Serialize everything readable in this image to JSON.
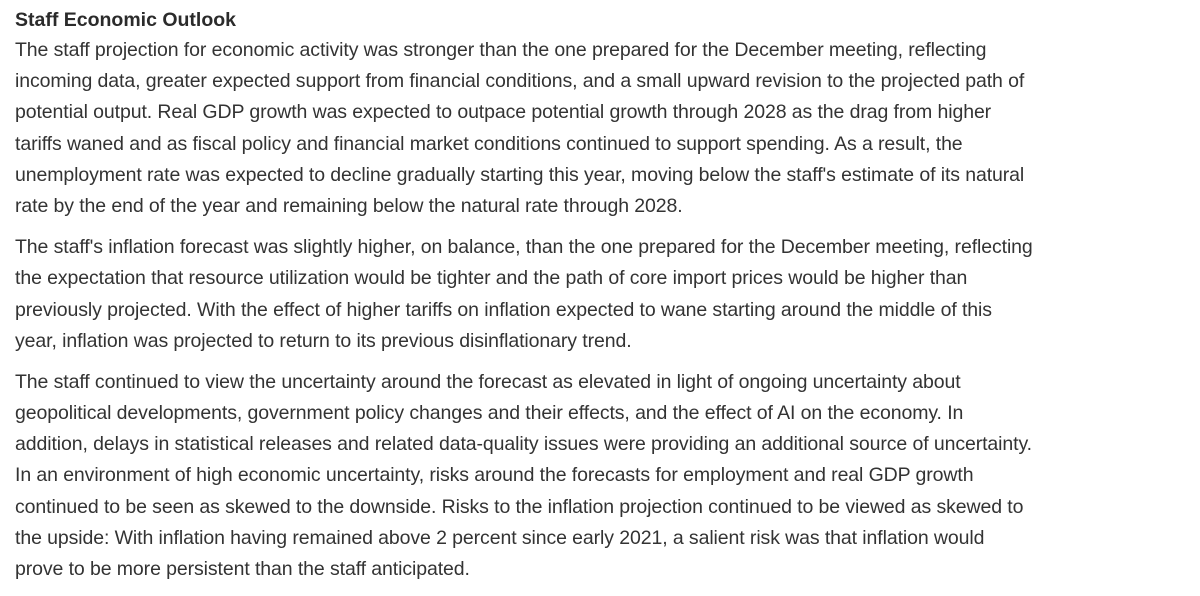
{
  "document": {
    "heading": "Staff Economic Outlook",
    "paragraphs": [
      {
        "lines": [
          "The staff projection for economic activity was stronger than the one prepared for the December meeting, reflecting",
          "incoming data, greater expected support from financial conditions, and a small upward revision to the projected path of",
          "potential output. Real GDP growth was expected to outpace potential growth through 2028 as the drag from higher",
          "tariffs waned and as fiscal policy and financial market conditions continued to support spending. As a result, the",
          "unemployment rate was expected to decline gradually starting this year, moving below the staff's estimate of its natural",
          "rate by the end of the year and remaining below the natural rate through 2028."
        ]
      },
      {
        "lines": [
          "The staff's inflation forecast was slightly higher, on balance, than the one prepared for the December meeting, reflecting",
          "the expectation that resource utilization would be tighter and the path of core import prices would be higher than",
          "previously projected. With the effect of higher tariffs on inflation expected to wane starting around the middle of this",
          "year, inflation was projected to return to its previous disinflationary trend."
        ]
      },
      {
        "lines": [
          "The staff continued to view the uncertainty around the forecast as elevated in light of ongoing uncertainty about",
          "geopolitical developments, government policy changes and their effects, and the effect of AI on the economy. In",
          "addition, delays in statistical releases and related data-quality issues were providing an additional source of uncertainty.",
          "In an environment of high economic uncertainty, risks around the forecasts for employment and real GDP growth",
          "continued to be seen as skewed to the downside. Risks to the inflation projection continued to be viewed as skewed to",
          "the upside: With inflation having remained above 2 percent since early 2021, a salient risk was that inflation would",
          "prove to be more persistent than the staff anticipated."
        ]
      }
    ]
  },
  "colors": {
    "background": "#ffffff",
    "text": "#333333",
    "heading": "#2b2b2b"
  }
}
